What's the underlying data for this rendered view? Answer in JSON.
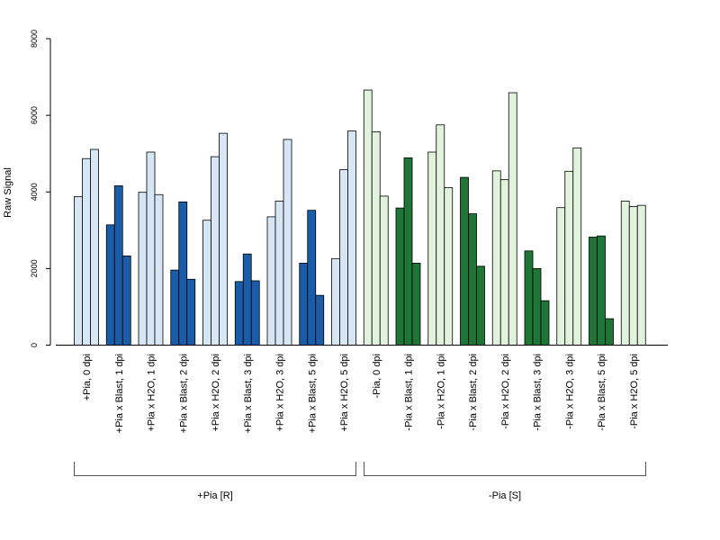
{
  "chart_data": {
    "type": "bar",
    "ylabel": "Raw Signal",
    "ylim": [
      0,
      8000
    ],
    "yticks": [
      0,
      2000,
      4000,
      6000,
      8000
    ],
    "grid": false,
    "colors": {
      "pia_h2o": "#d6e6f5",
      "pia_blast": "#1a5ca8",
      "nopia_h2o": "#e1f3dc",
      "nopia_blast": "#1f7535",
      "axis": "#000000",
      "bracket": "#555555"
    },
    "categories": [
      {
        "label": "+Pia, 0 dpi",
        "group": "pia",
        "treatment": "h2o",
        "values": [
          3880,
          4870,
          5110
        ]
      },
      {
        "label": "+Pia x Blast, 1 dpi",
        "group": "pia",
        "treatment": "blast",
        "values": [
          3140,
          4160,
          2330
        ]
      },
      {
        "label": "+Pia x H2O, 1 dpi",
        "group": "pia",
        "treatment": "h2o",
        "values": [
          3990,
          5040,
          3930
        ]
      },
      {
        "label": "+Pia x Blast, 2 dpi",
        "group": "pia",
        "treatment": "blast",
        "values": [
          1960,
          3740,
          1720
        ]
      },
      {
        "label": "+Pia x H2O, 2 dpi",
        "group": "pia",
        "treatment": "h2o",
        "values": [
          3260,
          4920,
          5530
        ]
      },
      {
        "label": "+Pia x Blast, 3 dpi",
        "group": "pia",
        "treatment": "blast",
        "values": [
          1660,
          2380,
          1680
        ]
      },
      {
        "label": "+Pia x H2O, 3 dpi",
        "group": "pia",
        "treatment": "h2o",
        "values": [
          3350,
          3760,
          5370
        ]
      },
      {
        "label": "+Pia x Blast, 5 dpi",
        "group": "pia",
        "treatment": "blast",
        "values": [
          2140,
          3520,
          1300
        ]
      },
      {
        "label": "+Pia x H2O, 5 dpi",
        "group": "pia",
        "treatment": "h2o",
        "values": [
          2260,
          4580,
          5590
        ]
      },
      {
        "label": "-Pia, 0 dpi",
        "group": "nopia",
        "treatment": "h2o",
        "values": [
          6660,
          5570,
          3890
        ]
      },
      {
        "label": "-Pia x Blast, 1 dpi",
        "group": "nopia",
        "treatment": "blast",
        "values": [
          3580,
          4890,
          2140
        ]
      },
      {
        "label": "-Pia x H2O, 1 dpi",
        "group": "nopia",
        "treatment": "h2o",
        "values": [
          5040,
          5750,
          4110
        ]
      },
      {
        "label": "-Pia x Blast, 2 dpi",
        "group": "nopia",
        "treatment": "blast",
        "values": [
          4380,
          3430,
          2060
        ]
      },
      {
        "label": "-Pia x H2O, 2 dpi",
        "group": "nopia",
        "treatment": "h2o",
        "values": [
          4550,
          4320,
          6590
        ]
      },
      {
        "label": "-Pia x Blast, 3 dpi",
        "group": "nopia",
        "treatment": "blast",
        "values": [
          2460,
          2000,
          1160
        ]
      },
      {
        "label": "-Pia x H2O, 3 dpi",
        "group": "nopia",
        "treatment": "h2o",
        "values": [
          3590,
          4540,
          5150
        ]
      },
      {
        "label": "-Pia x Blast, 5 dpi",
        "group": "nopia",
        "treatment": "blast",
        "values": [
          2820,
          2850,
          690
        ]
      },
      {
        "label": "-Pia x H2O, 5 dpi",
        "group": "nopia",
        "treatment": "h2o",
        "values": [
          3760,
          3620,
          3650
        ]
      }
    ],
    "groups": [
      {
        "key": "pia",
        "label": "+Pia [R]"
      },
      {
        "key": "nopia",
        "label": "-Pia [S]"
      }
    ]
  }
}
